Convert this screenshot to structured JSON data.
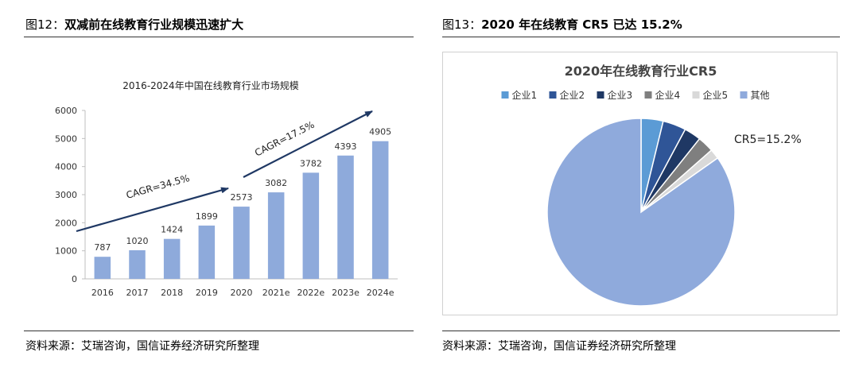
{
  "left": {
    "fig_prefix": "图12：",
    "fig_title": "双减前在线教育行业规模迅速扩大",
    "source": "资料来源：艾瑞咨询，国信证券经济研究所整理"
  },
  "right": {
    "fig_prefix": "图13：",
    "fig_title": "2020 年在线教育 CR5 已达 15.2%",
    "source": "资料来源：艾瑞咨询，国信证券经济研究所整理"
  },
  "chart_data": [
    {
      "type": "bar",
      "title": "2016-2024年中国在线教育行业市场规模",
      "categories": [
        "2016",
        "2017",
        "2018",
        "2019",
        "2020",
        "2021e",
        "2022e",
        "2023e",
        "2024e"
      ],
      "values": [
        787,
        1020,
        1424,
        1899,
        2573,
        3082,
        3782,
        4393,
        4905
      ],
      "data_labels": [
        "787",
        "1020",
        "1424",
        "1899",
        "2573",
        "3082",
        "3782",
        "4393",
        "4905"
      ],
      "ylim": [
        0,
        6000
      ],
      "yticks": [
        0,
        1000,
        2000,
        3000,
        4000,
        5000,
        6000
      ],
      "ytick_labels": [
        "0",
        "1000",
        "2000",
        "3000",
        "4000",
        "5000",
        "6000"
      ],
      "xlabel": "",
      "ylabel": "",
      "grid": false,
      "bar_color": "#8eaadb",
      "annotations": [
        {
          "text": "CAGR=34.5%",
          "from": "2016",
          "to": "2020"
        },
        {
          "text": "CAGR=17.5%",
          "from": "2020",
          "to": "2024e"
        }
      ]
    },
    {
      "type": "pie",
      "title": "2020年在线教育行业CR5",
      "labels": [
        "企业1",
        "企业2",
        "企业3",
        "企业4",
        "企业5",
        "其他"
      ],
      "values": [
        3.8,
        4.0,
        2.9,
        2.8,
        1.7,
        84.8
      ],
      "colors": [
        "#5b9bd5",
        "#2f5597",
        "#1f3864",
        "#7f7f7f",
        "#d9d9d9",
        "#8faadc"
      ],
      "legend_position": "top",
      "annotation": "CR5=15.2%"
    }
  ]
}
